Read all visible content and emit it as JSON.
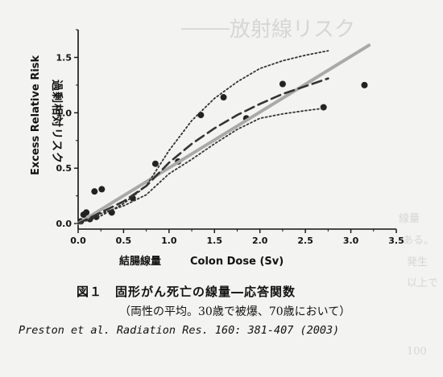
{
  "page": {
    "background": "#f3f3f1"
  },
  "chart_data": {
    "type": "scatter",
    "ylabel_en": "Excess Relative Risk",
    "ylabel_jp": "過剰相対リスク",
    "xlabel_jp": "結腸線量",
    "xlabel_en": "Colon Dose (Sv)",
    "xlim": [
      0.0,
      3.5
    ],
    "ylim": [
      -0.05,
      1.75
    ],
    "x_ticks": [
      "0.0",
      "0.5",
      "1.0",
      "1.5",
      "2.0",
      "2.5",
      "3.0",
      "3.5"
    ],
    "y_ticks": [
      "0.0",
      "0.5",
      "1.0",
      "1.5"
    ],
    "grid": false,
    "series": [
      {
        "style": "points",
        "color": "#222222",
        "x": [
          0.03,
          0.06,
          0.09,
          0.13,
          0.18,
          0.2,
          0.26,
          0.37,
          0.6,
          0.85,
          1.1,
          1.35,
          1.6,
          1.85,
          2.25,
          2.7,
          3.15
        ],
        "y": [
          0.02,
          0.08,
          0.1,
          0.04,
          0.29,
          0.06,
          0.31,
          0.1,
          0.23,
          0.54,
          0.56,
          0.98,
          1.14,
          0.95,
          1.26,
          1.05,
          1.25
        ]
      },
      {
        "style": "solid",
        "color": "#a9a9a9",
        "x": [
          0.0,
          3.2
        ],
        "y": [
          0.0,
          1.61
        ]
      },
      {
        "style": "dashed",
        "color": "#333333",
        "x": [
          0.0,
          0.25,
          0.5,
          0.75,
          1.0,
          1.25,
          1.5,
          1.75,
          2.0,
          2.25,
          2.5,
          2.75
        ],
        "y": [
          0.0,
          0.1,
          0.2,
          0.34,
          0.55,
          0.72,
          0.86,
          0.98,
          1.08,
          1.17,
          1.24,
          1.31
        ]
      },
      {
        "style": "dotted",
        "color": "#333333",
        "x": [
          0.0,
          0.25,
          0.5,
          0.75,
          1.0,
          1.25,
          1.5,
          1.75,
          2.0,
          2.25,
          2.5,
          2.75
        ],
        "y": [
          0.0,
          0.07,
          0.18,
          0.34,
          0.66,
          0.93,
          1.13,
          1.28,
          1.4,
          1.47,
          1.52,
          1.56
        ]
      },
      {
        "style": "dotted",
        "color": "#333333",
        "x": [
          0.0,
          0.25,
          0.5,
          0.75,
          1.0,
          1.25,
          1.5,
          1.75,
          2.0,
          2.25,
          2.5,
          2.7
        ],
        "y": [
          0.0,
          0.09,
          0.16,
          0.26,
          0.45,
          0.58,
          0.72,
          0.85,
          0.95,
          0.99,
          1.02,
          1.04
        ]
      }
    ]
  },
  "caption": {
    "title": "図１　固形がん死亡の線量―応答関数",
    "subtitle": "（両性の平均。30歳で被爆、70歳において）",
    "citation": "Preston et al. Radiation Res. 160: 381-407 (2003)"
  },
  "ghost_text": {
    "top": "放射線リスク",
    "line1": "線量",
    "line2": "ある。",
    "line3": "発生",
    "line4": "以上で",
    "line5": "100"
  }
}
